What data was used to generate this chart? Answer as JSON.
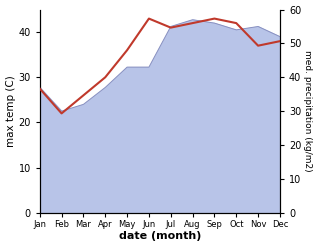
{
  "months": [
    "Jan",
    "Feb",
    "Mar",
    "Apr",
    "May",
    "Jun",
    "Jul",
    "Aug",
    "Sep",
    "Oct",
    "Nov",
    "Dec"
  ],
  "month_positions": [
    0,
    1,
    2,
    3,
    4,
    5,
    6,
    7,
    8,
    9,
    10,
    11
  ],
  "max_temp": [
    27.5,
    22,
    26,
    30,
    36,
    43,
    41,
    42,
    43,
    42,
    37,
    38
  ],
  "precipitation": [
    37,
    30,
    32,
    37,
    43,
    43,
    55,
    57,
    56,
    54,
    55,
    52
  ],
  "temp_color": "#c0392b",
  "precip_fill_color": "#b8c4e8",
  "temp_ylim": [
    0,
    45
  ],
  "precip_ylim": [
    0,
    60
  ],
  "temp_yticks": [
    0,
    10,
    20,
    30,
    40
  ],
  "precip_yticks": [
    0,
    10,
    20,
    30,
    40,
    50,
    60
  ],
  "xlabel": "date (month)",
  "ylabel_left": "max temp (C)",
  "ylabel_right": "med. precipitation (kg/m2)",
  "bg_color": "#ffffff",
  "fig_bg_color": "#ffffff"
}
